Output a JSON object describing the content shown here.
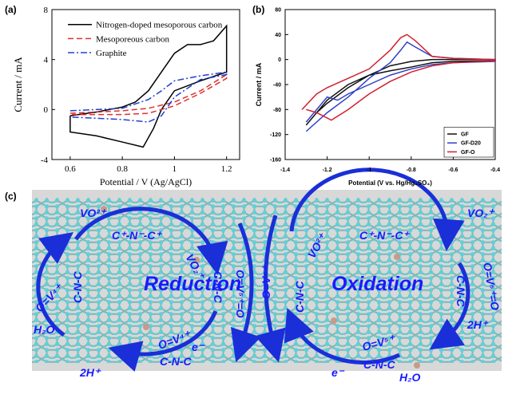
{
  "chart_data": [
    {
      "type": "line",
      "panel": "(a)",
      "xlabel": "Potential / V  (Ag/AgCl)",
      "ylabel": "Current / mA",
      "xlim": [
        0.53,
        1.25
      ],
      "xticks": [
        0.6,
        0.8,
        1.0,
        1.2
      ],
      "ylim": [
        -4,
        8
      ],
      "yticks": [
        -4,
        0,
        4,
        8
      ],
      "legend": "upper left",
      "series": [
        {
          "name": "Nitrogen-doped mesoporous carbon",
          "color": "#000000",
          "dash": "solid",
          "x": [
            0.6,
            0.7,
            0.8,
            0.85,
            0.9,
            0.95,
            1.0,
            1.05,
            1.1,
            1.15,
            1.2,
            1.2,
            1.1,
            1.0,
            0.95,
            0.92,
            0.88,
            0.8,
            0.7,
            0.6,
            0.6
          ],
          "values": [
            -0.5,
            -0.2,
            0.2,
            0.6,
            1.5,
            3,
            4.5,
            5.2,
            5.2,
            5.5,
            6.7,
            3,
            2.3,
            1.5,
            0,
            -1.5,
            -3,
            -2.6,
            -2.1,
            -1.8,
            -0.5
          ]
        },
        {
          "name": "Mesoporeous carbon",
          "color": "#e03030",
          "dash": "dashed",
          "x": [
            0.6,
            0.8,
            0.9,
            1.0,
            1.1,
            1.2,
            1.2,
            1.1,
            1.0,
            0.9,
            0.8,
            0.6
          ],
          "values": [
            -0.3,
            -0.1,
            0.1,
            0.6,
            1.5,
            2.8,
            2.5,
            1.3,
            0.3,
            -0.3,
            -0.4,
            -0.4
          ]
        },
        {
          "name": "Graphite",
          "color": "#2040d0",
          "dash": "dashdot",
          "x": [
            0.6,
            0.8,
            0.9,
            0.95,
            1.0,
            1.1,
            1.2,
            1.2,
            1.1,
            1.0,
            0.95,
            0.9,
            0.8,
            0.6
          ],
          "values": [
            -0.1,
            0.1,
            0.8,
            1.5,
            2.3,
            2.7,
            3.0,
            2.8,
            2.4,
            1.0,
            -0.5,
            -1.0,
            -0.8,
            -0.6
          ]
        }
      ]
    },
    {
      "type": "line",
      "panel": "(b)",
      "xlabel": "Potential (V vs. Hg/Hg₂SO₄)",
      "ylabel": "Current / mA",
      "xlim": [
        -1.4,
        -0.4
      ],
      "xticks": [
        -1.4,
        -1.2,
        -1.0,
        -0.8,
        -0.6,
        -0.4
      ],
      "ylim": [
        -160,
        80
      ],
      "yticks": [
        -160,
        -120,
        -80,
        -40,
        0,
        40,
        80
      ],
      "legend": "lower right",
      "series": [
        {
          "name": "GF",
          "color": "#111111",
          "dash": "solid",
          "x": [
            -1.3,
            -1.25,
            -1.2,
            -1.1,
            -1.0,
            -0.9,
            -0.8,
            -0.7,
            -0.6,
            -0.4,
            -0.4,
            -0.6,
            -0.7,
            -0.8,
            -0.9,
            -1.0,
            -1.1,
            -1.2,
            -1.3
          ],
          "values": [
            -105,
            -85,
            -70,
            -45,
            -25,
            -10,
            -3,
            0,
            0,
            0,
            -2,
            -3,
            -5,
            -12,
            -18,
            -25,
            -40,
            -65,
            -105
          ]
        },
        {
          "name": "GF-D20",
          "color": "#3040c8",
          "dash": "solid",
          "x": [
            -1.3,
            -1.2,
            -1.1,
            -1.0,
            -0.9,
            -0.85,
            -0.82,
            -0.78,
            -0.7,
            -0.6,
            -0.4,
            -0.4,
            -0.6,
            -0.7,
            -0.8,
            -0.9,
            -1.0,
            -1.1,
            -1.15,
            -1.2,
            -1.3
          ],
          "values": [
            -115,
            -85,
            -60,
            -30,
            -5,
            15,
            28,
            20,
            5,
            2,
            0,
            -3,
            -5,
            -8,
            -15,
            -25,
            -40,
            -55,
            -65,
            -60,
            -100
          ]
        },
        {
          "name": "GF-O",
          "color": "#d02030",
          "dash": "solid",
          "x": [
            -1.32,
            -1.25,
            -1.2,
            -1.1,
            -1.0,
            -0.9,
            -0.85,
            -0.82,
            -0.78,
            -0.7,
            -0.6,
            -0.4,
            -0.4,
            -0.6,
            -0.7,
            -0.8,
            -0.9,
            -1.0,
            -1.1,
            -1.18,
            -1.25,
            -1.3
          ],
          "values": [
            -80,
            -55,
            -45,
            -30,
            -15,
            15,
            35,
            40,
            30,
            5,
            2,
            0,
            -2,
            -5,
            -10,
            -20,
            -35,
            -55,
            -80,
            -97,
            -85,
            -80
          ]
        }
      ]
    }
  ],
  "diagram": {
    "panel": "(c)",
    "labels": [
      "VO²⁺",
      "C⁺-N⁻-C⁺",
      "VO₂⁺",
      "O=V⁴⁺",
      "C-N-C",
      "Reduction",
      "C-N-C",
      "O=V⁵⁺=O",
      "H₂O",
      "O=V⁴⁺",
      "C-N-C",
      "2H⁺",
      "e⁻",
      "O=V⁴⁺",
      "VO²⁺",
      "C-N-C",
      "C⁺-N⁻-C⁺",
      "VO₂⁺",
      "Oxidation",
      "C-N-C",
      "O=V⁵⁺=O",
      "2H⁺",
      "O=V⁵⁺",
      "C-N-C",
      "H₂O",
      "e⁻"
    ]
  }
}
